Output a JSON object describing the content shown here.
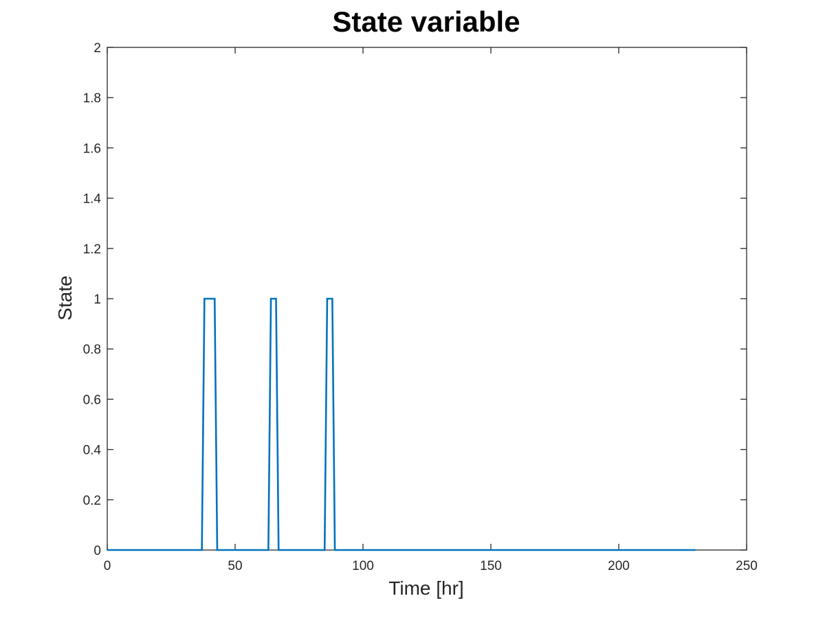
{
  "chart_data": {
    "type": "line",
    "title": "State variable",
    "xlabel": "Time [hr]",
    "ylabel": "State",
    "xlim": [
      0,
      250
    ],
    "ylim": [
      0,
      2
    ],
    "xticks": [
      0,
      50,
      100,
      150,
      200,
      250
    ],
    "yticks": [
      0,
      0.2,
      0.4,
      0.6,
      0.8,
      1,
      1.2,
      1.4,
      1.6,
      1.8,
      2
    ],
    "xtick_labels": [
      "0",
      "50",
      "100",
      "150",
      "200",
      "250"
    ],
    "ytick_labels": [
      "0",
      "0.2",
      "0.4",
      "0.6",
      "0.8",
      "1",
      "1.2",
      "1.4",
      "1.6",
      "1.8",
      "2"
    ],
    "grid": false,
    "box": true,
    "line_color": "#0072BD",
    "axis_color": "#262626",
    "series": [
      {
        "x": [
          0,
          37,
          38,
          42,
          43,
          63,
          64,
          66,
          67,
          85,
          86,
          88,
          89,
          230
        ],
        "y": [
          0,
          0,
          1,
          1,
          0,
          0,
          1,
          1,
          0,
          0,
          1,
          1,
          0,
          0
        ]
      }
    ]
  }
}
